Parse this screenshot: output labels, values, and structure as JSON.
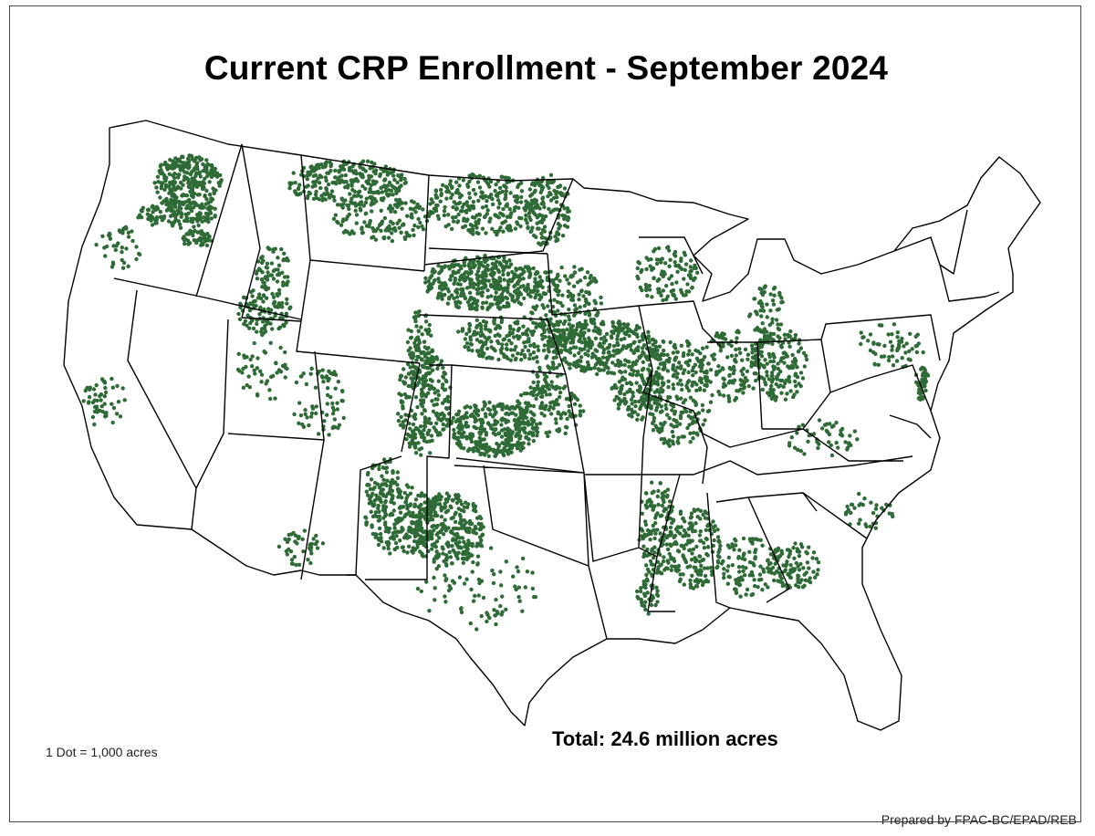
{
  "title": "Current CRP Enrollment - September 2024",
  "total_label": "Total: 24.6 million acres",
  "dot_legend": "1 Dot = 1,000 acres",
  "credit": "Prepared by FPAC-BC/EPAD/REB",
  "colors": {
    "dot": "#2f6b36",
    "state_line": "#000000",
    "background": "#ffffff"
  },
  "map_data": {
    "region": "Contiguous United States",
    "dot_value_acres": 1000,
    "total_acres_million": 24.6,
    "density_by_state": [
      {
        "state": "Montana",
        "level": "high"
      },
      {
        "state": "North Dakota",
        "level": "very high"
      },
      {
        "state": "South Dakota",
        "level": "very high"
      },
      {
        "state": "Kansas",
        "level": "very high"
      },
      {
        "state": "Colorado",
        "level": "very high"
      },
      {
        "state": "Texas",
        "level": "high"
      },
      {
        "state": "Iowa",
        "level": "very high"
      },
      {
        "state": "Minnesota",
        "level": "high"
      },
      {
        "state": "Washington",
        "level": "high"
      },
      {
        "state": "Nebraska",
        "level": "high"
      },
      {
        "state": "Oklahoma",
        "level": "medium"
      },
      {
        "state": "Illinois",
        "level": "high"
      },
      {
        "state": "Missouri",
        "level": "high"
      },
      {
        "state": "Mississippi",
        "level": "high"
      },
      {
        "state": "New Mexico",
        "level": "medium"
      },
      {
        "state": "Idaho",
        "level": "medium"
      },
      {
        "state": "Oregon",
        "level": "medium"
      },
      {
        "state": "Ohio",
        "level": "medium"
      },
      {
        "state": "Indiana",
        "level": "medium"
      },
      {
        "state": "Georgia",
        "level": "medium"
      },
      {
        "state": "Arkansas",
        "level": "medium"
      },
      {
        "state": "Wisconsin",
        "level": "medium"
      },
      {
        "state": "Michigan",
        "level": "medium"
      },
      {
        "state": "Nevada",
        "level": "none"
      },
      {
        "state": "Arizona",
        "level": "very low"
      }
    ]
  }
}
